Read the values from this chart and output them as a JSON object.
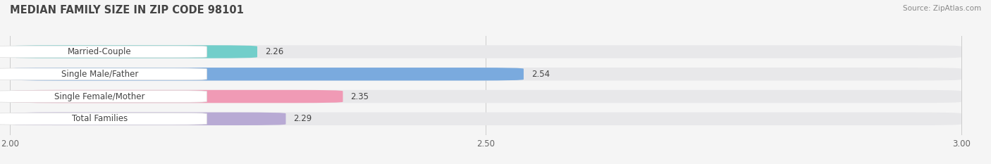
{
  "title": "MEDIAN FAMILY SIZE IN ZIP CODE 98101",
  "source": "Source: ZipAtlas.com",
  "categories": [
    "Married-Couple",
    "Single Male/Father",
    "Single Female/Mother",
    "Total Families"
  ],
  "values": [
    2.26,
    2.54,
    2.35,
    2.29
  ],
  "bar_colors": [
    "#72ceca",
    "#7aaade",
    "#f09ab5",
    "#b8aad4"
  ],
  "xlim": [
    2.0,
    3.0
  ],
  "xticks": [
    2.0,
    2.5,
    3.0
  ],
  "xtick_labels": [
    "2.00",
    "2.50",
    "3.00"
  ],
  "background_color": "#f5f5f5",
  "bar_bg_color": "#e8e8ea",
  "title_fontsize": 10.5,
  "label_fontsize": 8.5,
  "value_fontsize": 8.5,
  "tick_fontsize": 8.5,
  "bar_height": 0.58,
  "label_box_color": "#ffffff",
  "label_box_edge_color": "#dddddd",
  "grid_color": "#cccccc",
  "text_color": "#444444",
  "source_color": "#888888"
}
